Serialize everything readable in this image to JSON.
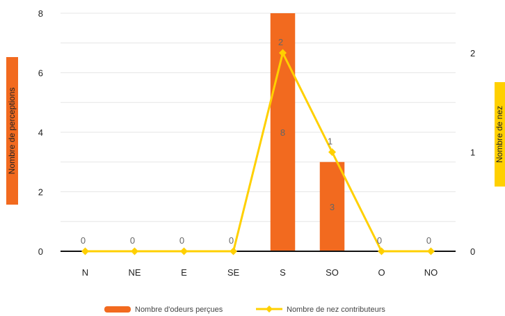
{
  "chart_data": {
    "type": "bar",
    "categories": [
      "N",
      "NE",
      "E",
      "SE",
      "S",
      "SO",
      "O",
      "NO"
    ],
    "series": [
      {
        "name": "Nombre d'odeurs perçues",
        "type": "bar",
        "axis": "left",
        "color": "#F26A1F",
        "values": [
          0,
          0,
          0,
          0,
          8,
          3,
          0,
          0
        ]
      },
      {
        "name": "Nombre de nez contributeurs",
        "type": "line",
        "axis": "right",
        "color": "#FFD000",
        "values": [
          0,
          0,
          0,
          0,
          2,
          1,
          0,
          0
        ]
      }
    ],
    "ylabel": "Nombre de perceptions",
    "y2label": "Nombre de nez",
    "ylim": [
      0,
      8
    ],
    "y2lim": [
      0,
      2.4
    ],
    "yticks": [
      0,
      2,
      4,
      6,
      8
    ],
    "y2ticks": [
      0,
      1,
      2
    ],
    "grid": true,
    "legend": "bottom"
  }
}
